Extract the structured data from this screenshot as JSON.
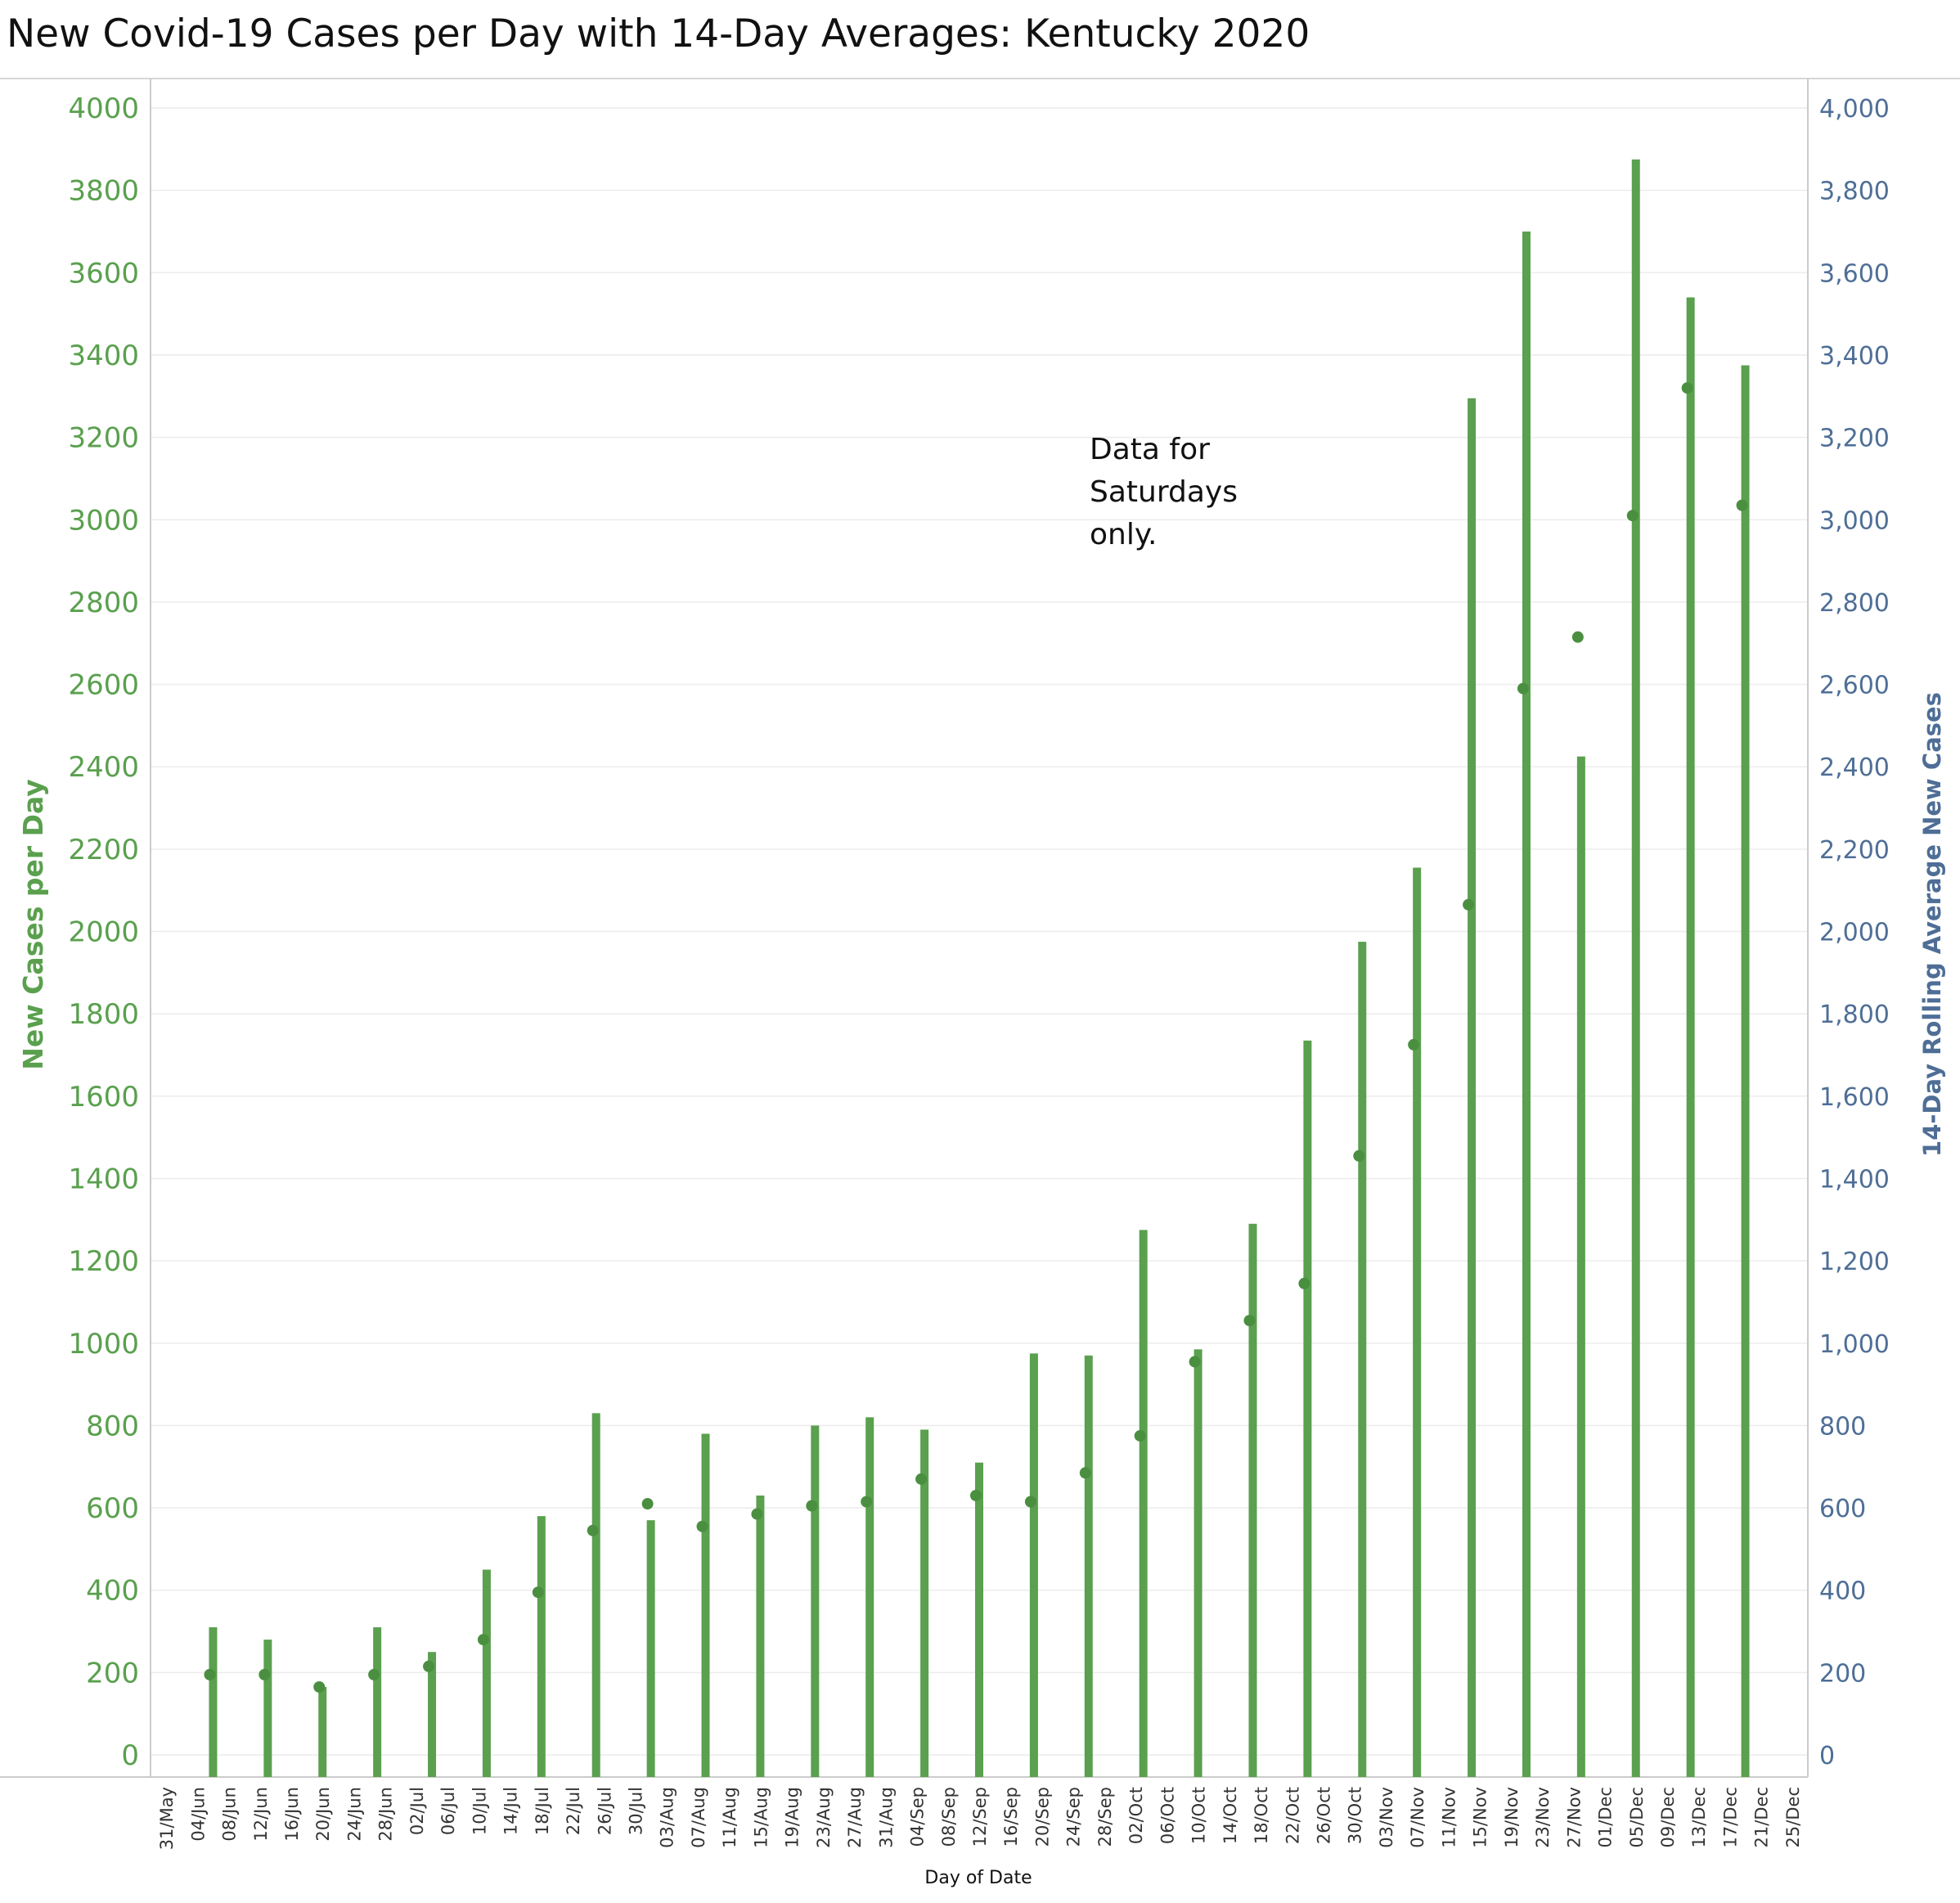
{
  "title": "New Covid-19 Cases per Day with 14-Day Averages: Kentucky  2020",
  "colors": {
    "bars": "#5aa04e",
    "points": "#4a8f40",
    "left_axis": "#5aa04e",
    "right_axis": "#4e6e96",
    "grid": "#ececec",
    "axis_line": "#cccccc"
  },
  "chart_data": {
    "type": "bar",
    "xlabel": "Day of Date",
    "ylabel": "New Cases per Day",
    "y2label": "14-Day Rolling Average New Cases",
    "ylim": [
      0,
      4000
    ],
    "y2lim": [
      0,
      4000
    ],
    "grid": true,
    "x_range": [
      "2020-05-29",
      "2020-12-27"
    ],
    "x_ticks": [
      "31/May",
      "04/Jun",
      "08/Jun",
      "12/Jun",
      "16/Jun",
      "20/Jun",
      "24/Jun",
      "28/Jun",
      "02/Jul",
      "06/Jul",
      "10/Jul",
      "14/Jul",
      "18/Jul",
      "22/Jul",
      "26/Jul",
      "30/Jul",
      "03/Aug",
      "07/Aug",
      "11/Aug",
      "15/Aug",
      "19/Aug",
      "23/Aug",
      "27/Aug",
      "31/Aug",
      "04/Sep",
      "08/Sep",
      "12/Sep",
      "16/Sep",
      "20/Sep",
      "24/Sep",
      "28/Sep",
      "02/Oct",
      "06/Oct",
      "10/Oct",
      "14/Oct",
      "18/Oct",
      "22/Oct",
      "26/Oct",
      "30/Oct",
      "03/Nov",
      "07/Nov",
      "11/Nov",
      "15/Nov",
      "19/Nov",
      "23/Nov",
      "27/Nov",
      "01/Dec",
      "05/Dec",
      "09/Dec",
      "13/Dec",
      "17/Dec",
      "21/Dec",
      "25/Dec"
    ],
    "left_ticks": [
      "0",
      "200",
      "400",
      "600",
      "800",
      "1000",
      "1200",
      "1400",
      "1600",
      "1800",
      "2000",
      "2200",
      "2400",
      "2600",
      "2800",
      "3000",
      "3200",
      "3400",
      "3600",
      "3800",
      "4000"
    ],
    "right_ticks": [
      "0",
      "200",
      "400",
      "600",
      "800",
      "1,000",
      "1,200",
      "1,400",
      "1,600",
      "1,800",
      "2,000",
      "2,200",
      "2,400",
      "2,600",
      "2,800",
      "3,000",
      "3,200",
      "3,400",
      "3,600",
      "3,800",
      "4,000"
    ],
    "dates": [
      "2020-06-06",
      "2020-06-13",
      "2020-06-20",
      "2020-06-27",
      "2020-07-04",
      "2020-07-11",
      "2020-07-18",
      "2020-07-25",
      "2020-08-01",
      "2020-08-08",
      "2020-08-15",
      "2020-08-22",
      "2020-08-29",
      "2020-09-05",
      "2020-09-12",
      "2020-09-19",
      "2020-09-26",
      "2020-10-03",
      "2020-10-10",
      "2020-10-17",
      "2020-10-24",
      "2020-10-31",
      "2020-11-07",
      "2020-11-14",
      "2020-11-21",
      "2020-11-28",
      "2020-12-05",
      "2020-12-12",
      "2020-12-19"
    ],
    "series": [
      {
        "name": "New Cases per Day",
        "type": "bar",
        "values": [
          310,
          280,
          165,
          310,
          250,
          450,
          580,
          830,
          570,
          780,
          630,
          800,
          820,
          790,
          710,
          975,
          970,
          1275,
          985,
          1290,
          1735,
          1975,
          2155,
          3295,
          3700,
          2425,
          3875,
          3540,
          3375
        ]
      },
      {
        "name": "14-Day Rolling Average New Cases",
        "type": "point",
        "values": [
          195,
          195,
          165,
          195,
          215,
          280,
          395,
          545,
          610,
          555,
          585,
          605,
          615,
          670,
          630,
          615,
          685,
          775,
          955,
          1055,
          1145,
          1455,
          1725,
          2065,
          2590,
          2715,
          3010,
          3320,
          3035
        ]
      }
    ],
    "annotation": [
      "Data for",
      "Saturdays",
      "only."
    ]
  }
}
